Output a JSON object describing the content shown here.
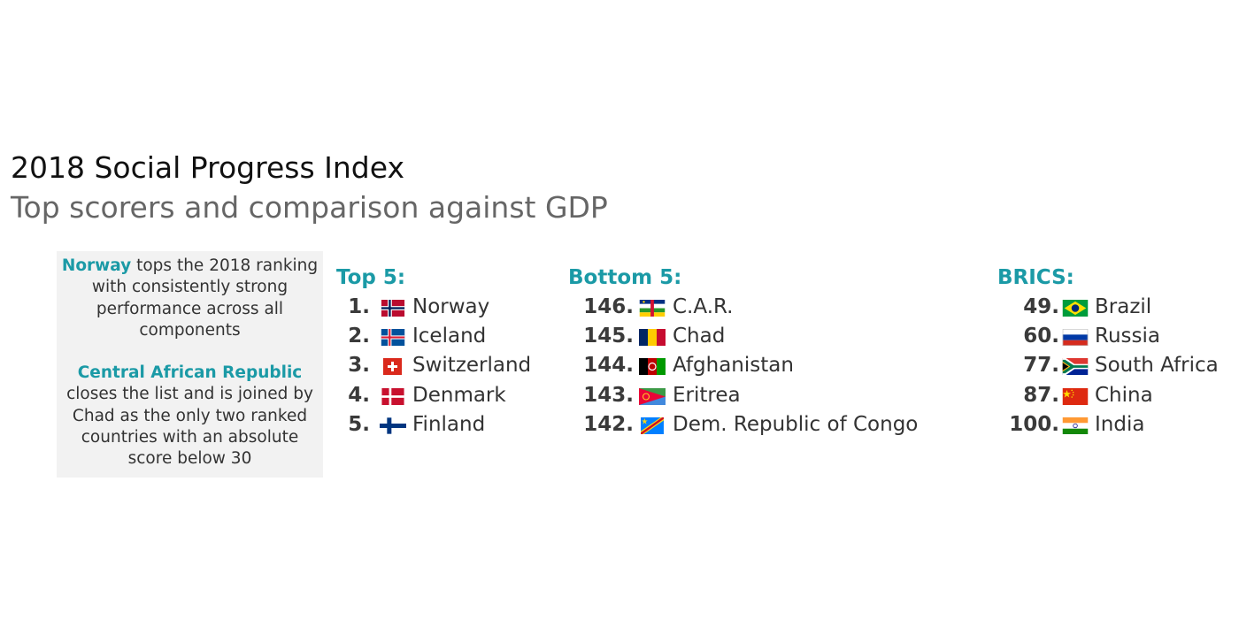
{
  "header": {
    "title": "2018 Social Progress Index",
    "subtitle": "Top scorers and comparison against GDP"
  },
  "callout": {
    "para1_highlight": "Norway",
    "para1_text": " tops the 2018 ranking with consistently strong performance across all components",
    "para2_highlight": "Central African Republic",
    "para2_text": " closes the list and is joined by Chad as the only two ranked countries with an absolute score below 30"
  },
  "colors": {
    "accent": "#1b9aa6",
    "callout_bg": "#f2f2f2"
  },
  "lists": {
    "top": {
      "title": "Top 5:",
      "items": [
        {
          "rank": "1.",
          "name": "Norway",
          "flag": "norway-flag-icon"
        },
        {
          "rank": "2.",
          "name": "Iceland",
          "flag": "iceland-flag-icon"
        },
        {
          "rank": "3.",
          "name": "Switzerland",
          "flag": "switzerland-flag-icon"
        },
        {
          "rank": "4.",
          "name": "Denmark",
          "flag": "denmark-flag-icon"
        },
        {
          "rank": "5.",
          "name": "Finland",
          "flag": "finland-flag-icon"
        }
      ]
    },
    "bottom": {
      "title": "Bottom 5:",
      "items": [
        {
          "rank": "146.",
          "name": "C.A.R.",
          "flag": "car-flag-icon"
        },
        {
          "rank": "145.",
          "name": "Chad",
          "flag": "chad-flag-icon"
        },
        {
          "rank": "144.",
          "name": "Afghanistan",
          "flag": "afghanistan-flag-icon"
        },
        {
          "rank": "143.",
          "name": "Eritrea",
          "flag": "eritrea-flag-icon"
        },
        {
          "rank": "142.",
          "name": "Dem. Republic of Congo",
          "flag": "drc-flag-icon"
        }
      ]
    },
    "brics": {
      "title": "BRICS:",
      "items": [
        {
          "rank": "49.",
          "name": "Brazil",
          "flag": "brazil-flag-icon"
        },
        {
          "rank": "60.",
          "name": "Russia",
          "flag": "russia-flag-icon"
        },
        {
          "rank": "77.",
          "name": "South Africa",
          "flag": "south-africa-flag-icon"
        },
        {
          "rank": "87.",
          "name": "China",
          "flag": "china-flag-icon"
        },
        {
          "rank": "100.",
          "name": "India",
          "flag": "india-flag-icon"
        }
      ]
    }
  }
}
